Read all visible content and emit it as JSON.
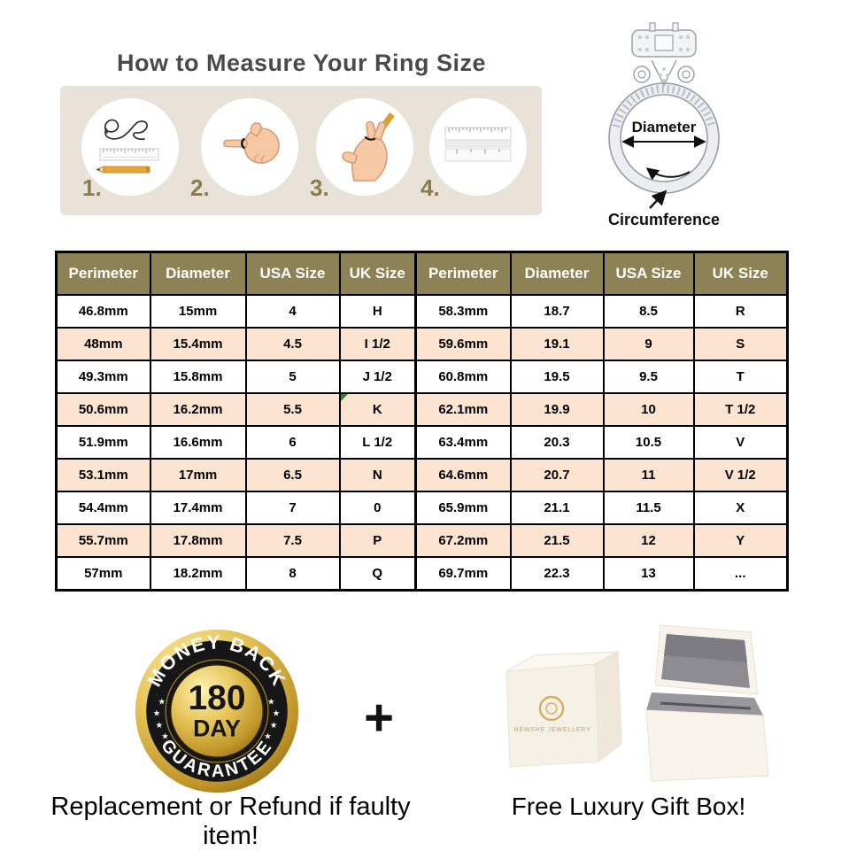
{
  "title": "How to Measure Your Ring Size",
  "steps": [
    {
      "number": "1.",
      "icon": "string-ruler-pencil-icon"
    },
    {
      "number": "2.",
      "icon": "finger-with-string-icon"
    },
    {
      "number": "3.",
      "icon": "hand-pencil-marking-icon"
    },
    {
      "number": "4.",
      "icon": "ruler-measure-icon"
    }
  ],
  "ring_diagram": {
    "diameter_label": "Diameter",
    "circumference_label": "Circumference"
  },
  "size_table": {
    "headers": [
      "Perimeter",
      "Diameter",
      "USA Size",
      "UK Size",
      "Perimeter",
      "Diameter",
      "USA Size",
      "UK Size"
    ],
    "rows": [
      [
        "46.8mm",
        "15mm",
        "4",
        "H",
        "58.3mm",
        "18.7",
        "8.5",
        "R"
      ],
      [
        "48mm",
        "15.4mm",
        "4.5",
        "I 1/2",
        "59.6mm",
        "19.1",
        "9",
        "S"
      ],
      [
        "49.3mm",
        "15.8mm",
        "5",
        "J 1/2",
        "60.8mm",
        "19.5",
        "9.5",
        "T"
      ],
      [
        "50.6mm",
        "16.2mm",
        "5.5",
        "K",
        "62.1mm",
        "19.9",
        "10",
        "T 1/2"
      ],
      [
        "51.9mm",
        "16.6mm",
        "6",
        "L 1/2",
        "63.4mm",
        "20.3",
        "10.5",
        "V"
      ],
      [
        "53.1mm",
        "17mm",
        "6.5",
        "N",
        "64.6mm",
        "20.7",
        "11",
        "V 1/2"
      ],
      [
        "54.4mm",
        "17.4mm",
        "7",
        "0",
        "65.9mm",
        "21.1",
        "11.5",
        "X"
      ],
      [
        "55.7mm",
        "17.8mm",
        "7.5",
        "P",
        "67.2mm",
        "21.5",
        "12",
        "Y"
      ],
      [
        "57mm",
        "18.2mm",
        "8",
        "Q",
        "69.7mm",
        "22.3",
        "13",
        "..."
      ]
    ],
    "marker": {
      "row_index": 3,
      "col_index": 3
    }
  },
  "guarantee_badge": {
    "top_arc": "MONEY BACK",
    "bottom_arc": "GUARANTEE",
    "days": "180",
    "day_label": "DAY"
  },
  "plus_sign": "+",
  "gift_box": {
    "brand_text": "NEWSHE JEWELLERY"
  },
  "footer": {
    "refund_text": "Replacement or Refund if faulty item!",
    "gift_text": "Free Luxury Gift Box!"
  },
  "colors": {
    "table_header": "#8c8256",
    "row_stripe": "#fce4d0",
    "banner_bg": "#e9e2d8",
    "step_number": "#8a7c4e",
    "badge_gold": "#c9a227",
    "marker_green": "#1f8a1f"
  }
}
